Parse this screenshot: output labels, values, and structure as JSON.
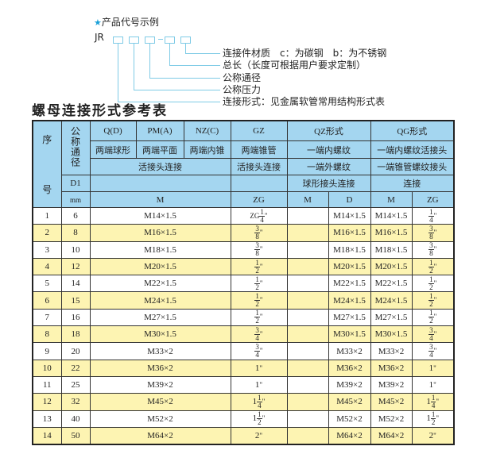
{
  "legend": {
    "star_icon": "star",
    "heading": "产品代号示例",
    "code_prefix": "JR",
    "labels": [
      "连接件材质　c：为碳钢　b：为不锈钢",
      "总长（长度可根据用户要求定制）",
      "公称通径",
      "公称压力",
      "连接形式：见金属软管常用结构形式表"
    ]
  },
  "title": "螺母连接形式参考表",
  "colors": {
    "header_bg": "#a4d6f0",
    "alt_row_bg": "#fdf4b2",
    "line": "#7fcbe6"
  },
  "header": {
    "seq": [
      "序",
      "号"
    ],
    "dn": "公称通径",
    "row1": [
      "Q(D)",
      "PM(A)",
      "NZ(C)",
      "GZ",
      "QZ形式",
      "QG形式"
    ],
    "row2": [
      "两端球形",
      "两端平面",
      "两端内锥",
      "两端锥管",
      "一端内螺纹",
      "一端内螺纹活接头"
    ],
    "row3": [
      "活接头连接",
      "活接头连接",
      "一端外螺纹",
      "一端锥管螺纹接头"
    ],
    "row4": [
      "D1",
      "球形接头连接",
      "连接"
    ],
    "row5": [
      "mm",
      "M",
      "ZG",
      "M",
      "D",
      "M",
      "ZG"
    ]
  },
  "rows": [
    {
      "no": "1",
      "d1": "6",
      "m": "M14×1.5",
      "zg": {
        "prefix": "ZG",
        "whole": "",
        "num": "1",
        "den": "4",
        "unit": "\""
      },
      "qz_d": "M14×1.5",
      "qg_m": "M14×1.5",
      "qg_zg": {
        "prefix": "",
        "whole": "",
        "num": "1",
        "den": "4",
        "unit": "\""
      }
    },
    {
      "no": "2",
      "d1": "8",
      "m": "M16×1.5",
      "zg": {
        "prefix": "",
        "whole": "",
        "num": "3",
        "den": "8",
        "unit": "\""
      },
      "qz_d": "M16×1.5",
      "qg_m": "M16×1.5",
      "qg_zg": {
        "prefix": "",
        "whole": "",
        "num": "3",
        "den": "8",
        "unit": "\""
      }
    },
    {
      "no": "3",
      "d1": "10",
      "m": "M18×1.5",
      "zg": {
        "prefix": "",
        "whole": "",
        "num": "3",
        "den": "8",
        "unit": "\""
      },
      "qz_d": "M18×1.5",
      "qg_m": "M18×1.5",
      "qg_zg": {
        "prefix": "",
        "whole": "",
        "num": "3",
        "den": "8",
        "unit": "\""
      }
    },
    {
      "no": "4",
      "d1": "12",
      "m": "M20×1.5",
      "zg": {
        "prefix": "",
        "whole": "",
        "num": "1",
        "den": "2",
        "unit": "\""
      },
      "qz_d": "M20×1.5",
      "qg_m": "M20×1.5",
      "qg_zg": {
        "prefix": "",
        "whole": "",
        "num": "1",
        "den": "2",
        "unit": "\""
      }
    },
    {
      "no": "5",
      "d1": "14",
      "m": "M22×1.5",
      "zg": {
        "prefix": "",
        "whole": "",
        "num": "1",
        "den": "2",
        "unit": "\""
      },
      "qz_d": "M22×1.5",
      "qg_m": "M22×1.5",
      "qg_zg": {
        "prefix": "",
        "whole": "",
        "num": "1",
        "den": "2",
        "unit": "\""
      }
    },
    {
      "no": "6",
      "d1": "15",
      "m": "M24×1.5",
      "zg": {
        "prefix": "",
        "whole": "",
        "num": "1",
        "den": "2",
        "unit": "\""
      },
      "qz_d": "M24×1.5",
      "qg_m": "M24×1.5",
      "qg_zg": {
        "prefix": "",
        "whole": "",
        "num": "1",
        "den": "2",
        "unit": "\""
      }
    },
    {
      "no": "7",
      "d1": "16",
      "m": "M27×1.5",
      "zg": {
        "prefix": "",
        "whole": "",
        "num": "1",
        "den": "2",
        "unit": "\""
      },
      "qz_d": "M27×1.5",
      "qg_m": "M27×1.5",
      "qg_zg": {
        "prefix": "",
        "whole": "",
        "num": "1",
        "den": "2",
        "unit": "\""
      }
    },
    {
      "no": "8",
      "d1": "18",
      "m": "M30×1.5",
      "zg": {
        "prefix": "",
        "whole": "",
        "num": "3",
        "den": "4",
        "unit": "\""
      },
      "qz_d": "M30×1.5",
      "qg_m": "M30×1.5",
      "qg_zg": {
        "prefix": "",
        "whole": "",
        "num": "3",
        "den": "4",
        "unit": "\""
      }
    },
    {
      "no": "9",
      "d1": "20",
      "m": "M33×2",
      "zg": {
        "prefix": "",
        "whole": "",
        "num": "3",
        "den": "4",
        "unit": "\""
      },
      "qz_d": "M33×2",
      "qg_m": "M33×2",
      "qg_zg": {
        "prefix": "",
        "whole": "",
        "num": "3",
        "den": "4",
        "unit": "\""
      }
    },
    {
      "no": "10",
      "d1": "22",
      "m": "M36×2",
      "zg": {
        "prefix": "",
        "whole": "1",
        "num": "",
        "den": "",
        "unit": "\""
      },
      "qz_d": "M36×2",
      "qg_m": "M36×2",
      "qg_zg": {
        "prefix": "",
        "whole": "1",
        "num": "",
        "den": "",
        "unit": "\""
      }
    },
    {
      "no": "11",
      "d1": "25",
      "m": "M39×2",
      "zg": {
        "prefix": "",
        "whole": "1",
        "num": "",
        "den": "",
        "unit": "\""
      },
      "qz_d": "M39×2",
      "qg_m": "M39×2",
      "qg_zg": {
        "prefix": "",
        "whole": "1",
        "num": "",
        "den": "",
        "unit": "\""
      }
    },
    {
      "no": "12",
      "d1": "32",
      "m": "M45×2",
      "zg": {
        "prefix": "",
        "whole": "1",
        "num": "1",
        "den": "4",
        "unit": "\""
      },
      "qz_d": "M45×2",
      "qg_m": "M45×2",
      "qg_zg": {
        "prefix": "",
        "whole": "1",
        "num": "1",
        "den": "4",
        "unit": "\""
      }
    },
    {
      "no": "13",
      "d1": "40",
      "m": "M52×2",
      "zg": {
        "prefix": "",
        "whole": "1",
        "num": "1",
        "den": "2",
        "unit": "\""
      },
      "qz_d": "M52×2",
      "qg_m": "M52×2",
      "qg_zg": {
        "prefix": "",
        "whole": "1",
        "num": "1",
        "den": "2",
        "unit": "\""
      }
    },
    {
      "no": "14",
      "d1": "50",
      "m": "M64×2",
      "zg": {
        "prefix": "",
        "whole": "2",
        "num": "",
        "den": "",
        "unit": "\""
      },
      "qz_d": "M64×2",
      "qg_m": "M64×2",
      "qg_zg": {
        "prefix": "",
        "whole": "2",
        "num": "",
        "den": "",
        "unit": "\""
      }
    }
  ]
}
